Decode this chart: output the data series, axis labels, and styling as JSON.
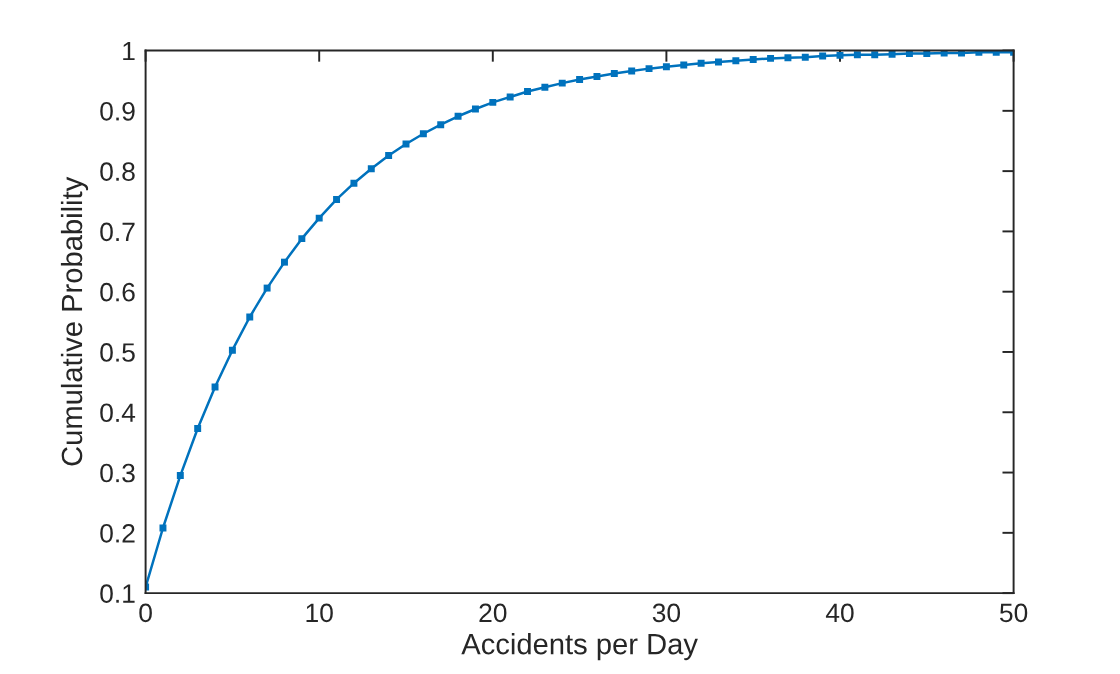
{
  "chart_data": {
    "type": "line",
    "xlabel": "Accidents per Day",
    "ylabel": "Cumulative Probability",
    "x": [
      0,
      1,
      2,
      3,
      4,
      5,
      6,
      7,
      8,
      9,
      10,
      11,
      12,
      13,
      14,
      15,
      16,
      17,
      18,
      19,
      20,
      21,
      22,
      23,
      24,
      25,
      26,
      27,
      28,
      29,
      30,
      31,
      32,
      33,
      34,
      35,
      36,
      37,
      38,
      39,
      40,
      41,
      42,
      43,
      44,
      45,
      46,
      47,
      48,
      49,
      50
    ],
    "series": [
      {
        "color": "#0072bd",
        "values": [
          0.11,
          0.208,
          0.295,
          0.373,
          0.442,
          0.503,
          0.558,
          0.606,
          0.649,
          0.688,
          0.722,
          0.753,
          0.78,
          0.804,
          0.826,
          0.845,
          0.862,
          0.877,
          0.891,
          0.903,
          0.914,
          0.923,
          0.932,
          0.939,
          0.946,
          0.952,
          0.957,
          0.962,
          0.966,
          0.97,
          0.973,
          0.976,
          0.979,
          0.981,
          0.983,
          0.985,
          0.987,
          0.988,
          0.989,
          0.991,
          0.992,
          0.993,
          0.993,
          0.994,
          0.995,
          0.995,
          0.996,
          0.996,
          0.997,
          0.997,
          0.997
        ]
      }
    ],
    "xlim": [
      0,
      50
    ],
    "xticks": [
      0,
      10,
      20,
      30,
      40,
      50
    ],
    "ylim": [
      0.1,
      1
    ],
    "yticks": [
      0.1,
      0.2,
      0.3,
      0.4,
      0.5,
      0.6,
      0.7,
      0.8,
      0.9,
      1
    ],
    "grid": false,
    "legend": false,
    "marker": "square",
    "line_style": "solid"
  }
}
